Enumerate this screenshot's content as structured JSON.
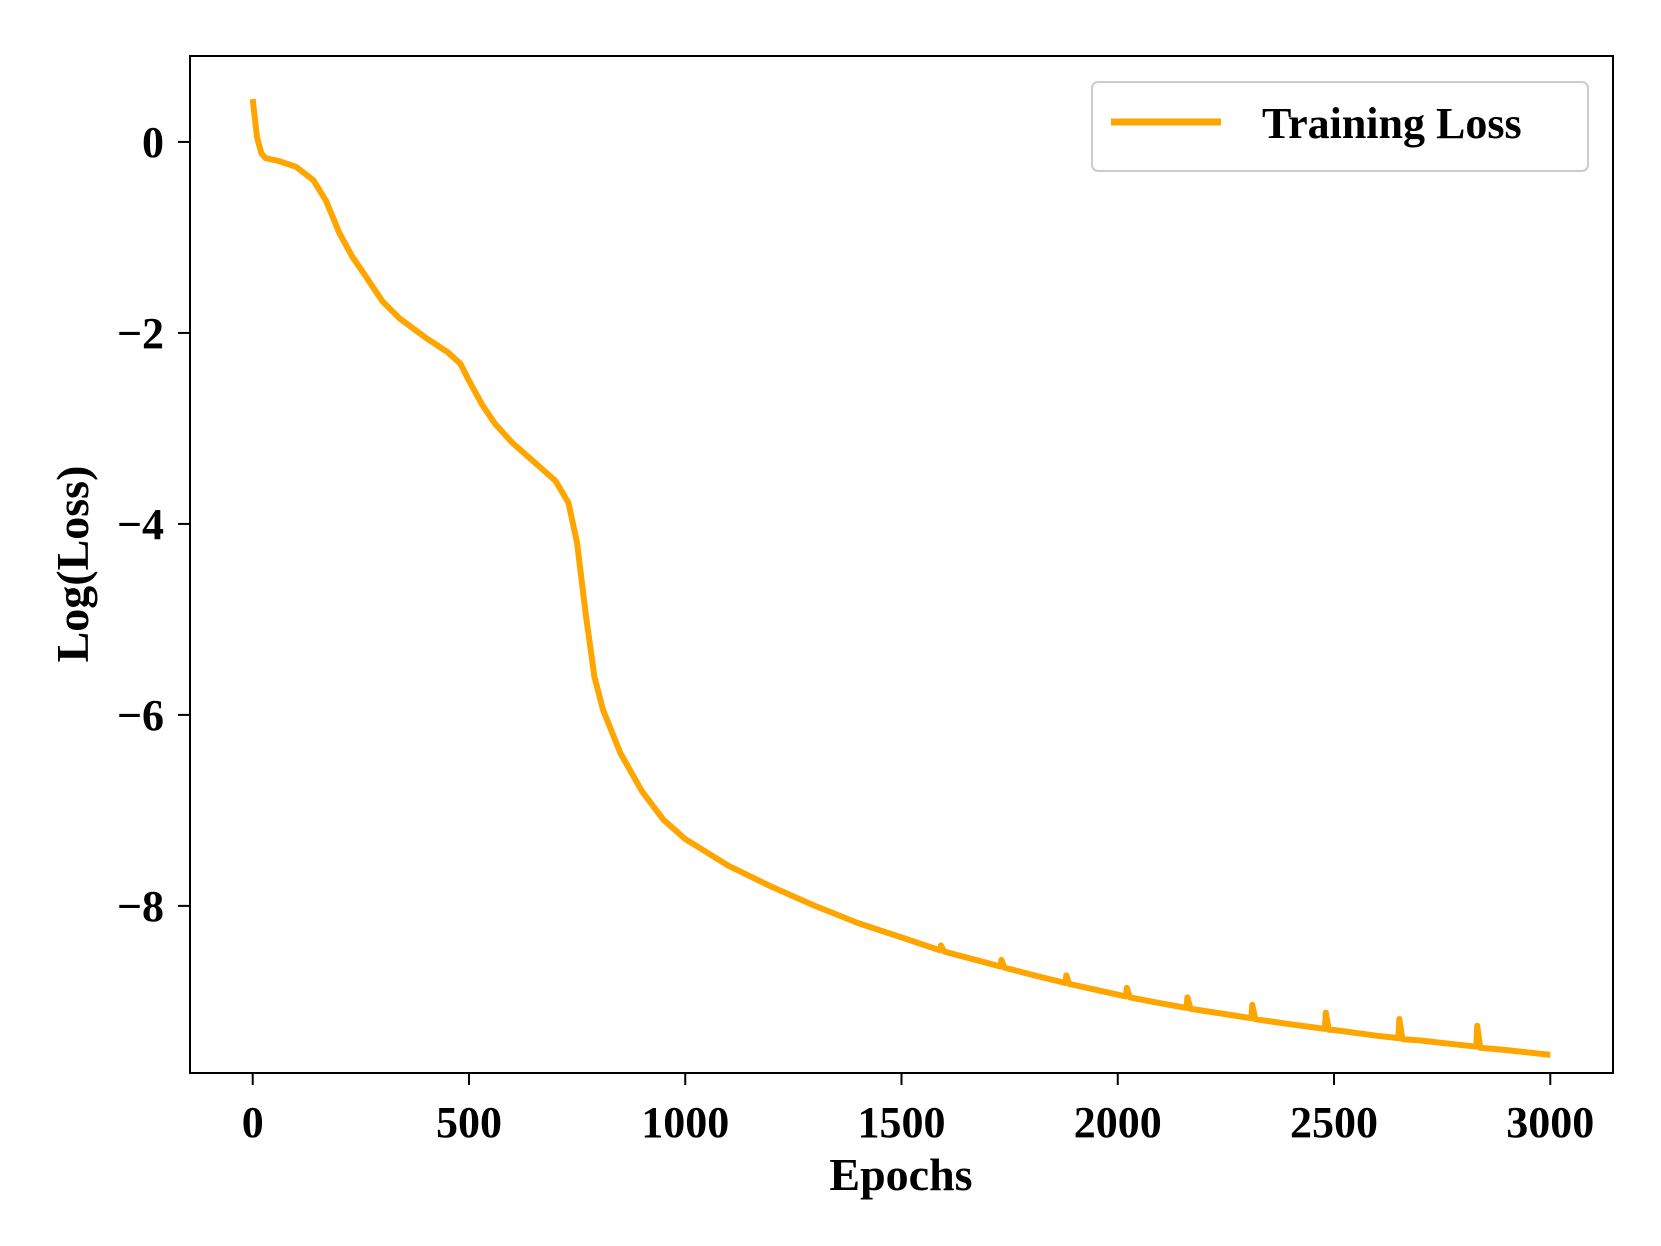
{
  "chart_data": {
    "type": "line",
    "title": "",
    "xlabel": "Epochs",
    "ylabel": "Log(Loss)",
    "xlim": [
      -145,
      3145
    ],
    "ylim": [
      -9.75,
      0.9
    ],
    "xticks": [
      0,
      500,
      1000,
      1500,
      2000,
      2500,
      3000
    ],
    "xtick_labels": [
      "0",
      "500",
      "1000",
      "1500",
      "2000",
      "2500",
      "3000"
    ],
    "yticks": [
      0,
      -2,
      -4,
      -6,
      -8
    ],
    "ytick_labels": [
      "0",
      "−2",
      "−4",
      "−6",
      "−8"
    ],
    "grid": false,
    "legend": {
      "position": "upper-right",
      "entries": [
        "Training Loss"
      ]
    },
    "series": [
      {
        "name": "Training Loss",
        "color": "#FFA500",
        "x": [
          0,
          10,
          20,
          30,
          60,
          100,
          140,
          170,
          200,
          230,
          260,
          300,
          340,
          400,
          450,
          480,
          500,
          530,
          560,
          600,
          650,
          700,
          730,
          750,
          770,
          790,
          810,
          850,
          900,
          950,
          1000,
          1100,
          1200,
          1300,
          1400,
          1500,
          1600,
          1700,
          1800,
          1900,
          2000,
          2100,
          2200,
          2300,
          2400,
          2500,
          2600,
          2700,
          2800,
          2900,
          3000
        ],
        "y": [
          0.45,
          0.05,
          -0.12,
          -0.17,
          -0.2,
          -0.26,
          -0.4,
          -0.62,
          -0.95,
          -1.2,
          -1.4,
          -1.67,
          -1.85,
          -2.05,
          -2.2,
          -2.32,
          -2.5,
          -2.75,
          -2.95,
          -3.15,
          -3.35,
          -3.55,
          -3.78,
          -4.2,
          -4.95,
          -5.6,
          -5.95,
          -6.4,
          -6.8,
          -7.1,
          -7.3,
          -7.58,
          -7.8,
          -8.0,
          -8.18,
          -8.33,
          -8.48,
          -8.6,
          -8.72,
          -8.83,
          -8.93,
          -9.02,
          -9.1,
          -9.17,
          -9.24,
          -9.3,
          -9.36,
          -9.41,
          -9.46,
          -9.51,
          -9.56
        ],
        "spikes": [
          {
            "x": 1590,
            "height": 0.05
          },
          {
            "x": 1730,
            "height": 0.07
          },
          {
            "x": 1880,
            "height": 0.08
          },
          {
            "x": 2020,
            "height": 0.09
          },
          {
            "x": 2160,
            "height": 0.11
          },
          {
            "x": 2310,
            "height": 0.14
          },
          {
            "x": 2480,
            "height": 0.17
          },
          {
            "x": 2650,
            "height": 0.2
          },
          {
            "x": 2830,
            "height": 0.22
          }
        ]
      }
    ]
  },
  "colors": {
    "line": "#FFA500",
    "axes": "#000000",
    "legend_border": "#cccccc"
  }
}
